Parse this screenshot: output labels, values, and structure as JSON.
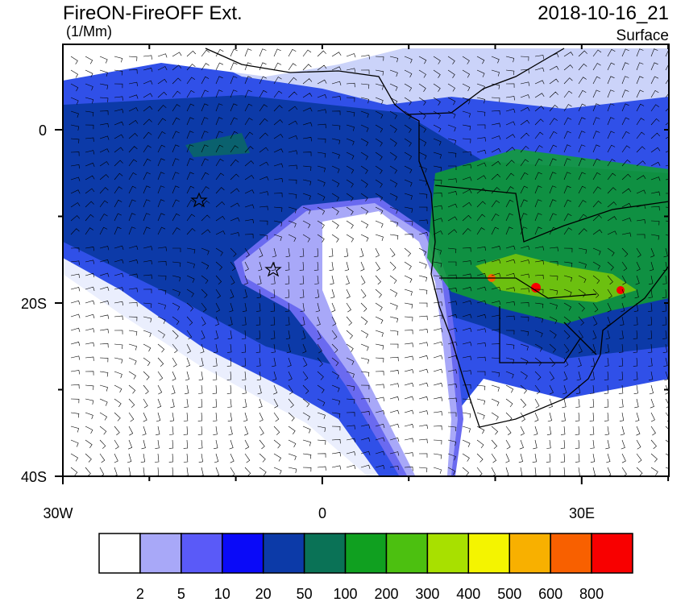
{
  "header": {
    "title": "FireON-FireOFF Ext.",
    "units": "(1/Mm)",
    "datetime": "2018-10-16_21",
    "level": "Surface"
  },
  "map": {
    "lat_labels": [
      "0",
      "20S",
      "40S"
    ],
    "lon_labels": [
      "30W",
      "0",
      "30E"
    ]
  },
  "colorbar": {
    "colors": [
      "#ffffff",
      "#a8a8f8",
      "#5a5af8",
      "#0a0af8",
      "#0c3aa8",
      "#0a7256",
      "#10a020",
      "#4cc010",
      "#a8e000",
      "#f4f400",
      "#f8b000",
      "#f86000",
      "#f80000"
    ],
    "labels": [
      "2",
      "5",
      "10",
      "20",
      "50",
      "100",
      "200",
      "300",
      "400",
      "500",
      "600",
      "800"
    ]
  }
}
